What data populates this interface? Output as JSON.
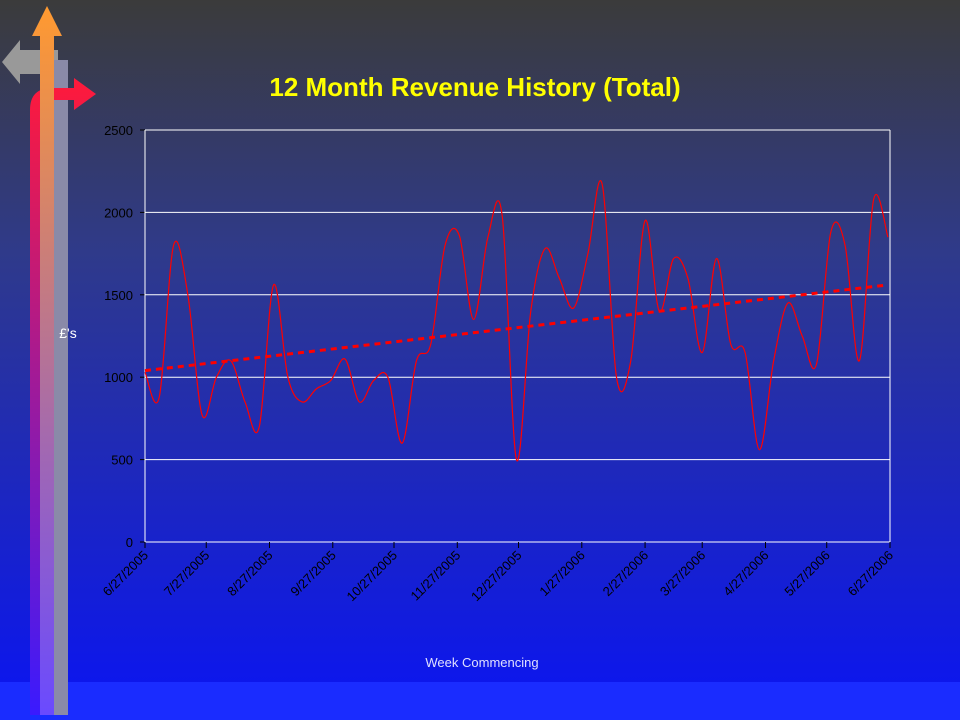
{
  "chart_data": {
    "type": "line",
    "title": "12 Month Revenue History (Total)",
    "y_label": "£'s",
    "x_label": "Week Commencing",
    "x": [
      "2005-06-27",
      "2005-07-04",
      "2005-07-11",
      "2005-07-18",
      "2005-07-25",
      "2005-08-01",
      "2005-08-08",
      "2005-08-15",
      "2005-08-22",
      "2005-08-29",
      "2005-09-05",
      "2005-09-12",
      "2005-09-19",
      "2005-09-26",
      "2005-10-03",
      "2005-10-10",
      "2005-10-17",
      "2005-10-24",
      "2005-10-31",
      "2005-11-07",
      "2005-11-14",
      "2005-11-21",
      "2005-11-28",
      "2005-12-05",
      "2005-12-12",
      "2005-12-19",
      "2005-12-26",
      "2006-01-02",
      "2006-01-09",
      "2006-01-16",
      "2006-01-23",
      "2006-01-30",
      "2006-02-06",
      "2006-02-13",
      "2006-02-20",
      "2006-02-27",
      "2006-03-06",
      "2006-03-13",
      "2006-03-20",
      "2006-03-27",
      "2006-04-03",
      "2006-04-10",
      "2006-04-17",
      "2006-04-24",
      "2006-05-01",
      "2006-05-08",
      "2006-05-15",
      "2006-05-22",
      "2006-05-29",
      "2006-06-05",
      "2006-06-12",
      "2006-06-19",
      "2006-06-26"
    ],
    "series": [
      {
        "color": "#ff0000",
        "values": [
          1030,
          880,
          1800,
          1500,
          770,
          1000,
          1100,
          850,
          700,
          1560,
          1000,
          850,
          930,
          980,
          1110,
          850,
          980,
          1000,
          600,
          1100,
          1200,
          1800,
          1860,
          1350,
          1850,
          1980,
          500,
          1400,
          1780,
          1600,
          1420,
          1750,
          2170,
          1000,
          1100,
          1950,
          1400,
          1720,
          1600,
          1150,
          1720,
          1200,
          1150,
          560,
          1100,
          1450,
          1250,
          1080,
          1880,
          1800,
          1100,
          2080,
          1850
        ]
      }
    ],
    "trendline": {
      "start": 1040,
      "end": 1560,
      "color": "#ff0000",
      "dashed": true
    },
    "xlim": [
      "2005-06-27",
      "2006-06-27"
    ],
    "xticks": [
      {
        "value": "2005-06-27",
        "label": "6/27/2005"
      },
      {
        "value": "2005-07-27",
        "label": "7/27/2005"
      },
      {
        "value": "2005-08-27",
        "label": "8/27/2005"
      },
      {
        "value": "2005-09-27",
        "label": "9/27/2005"
      },
      {
        "value": "2005-10-27",
        "label": "10/27/2005"
      },
      {
        "value": "2005-11-27",
        "label": "11/27/2005"
      },
      {
        "value": "2005-12-27",
        "label": "12/27/2005"
      },
      {
        "value": "2006-01-27",
        "label": "1/27/2006"
      },
      {
        "value": "2006-02-27",
        "label": "2/27/2006"
      },
      {
        "value": "2006-03-27",
        "label": "3/27/2006"
      },
      {
        "value": "2006-04-27",
        "label": "4/27/2006"
      },
      {
        "value": "2006-05-27",
        "label": "5/27/2006"
      },
      {
        "value": "2006-06-27",
        "label": "6/27/2006"
      }
    ],
    "ylim": [
      0,
      2500
    ],
    "yticks": [
      0,
      500,
      1000,
      1500,
      2000,
      2500
    ],
    "grid": true
  }
}
